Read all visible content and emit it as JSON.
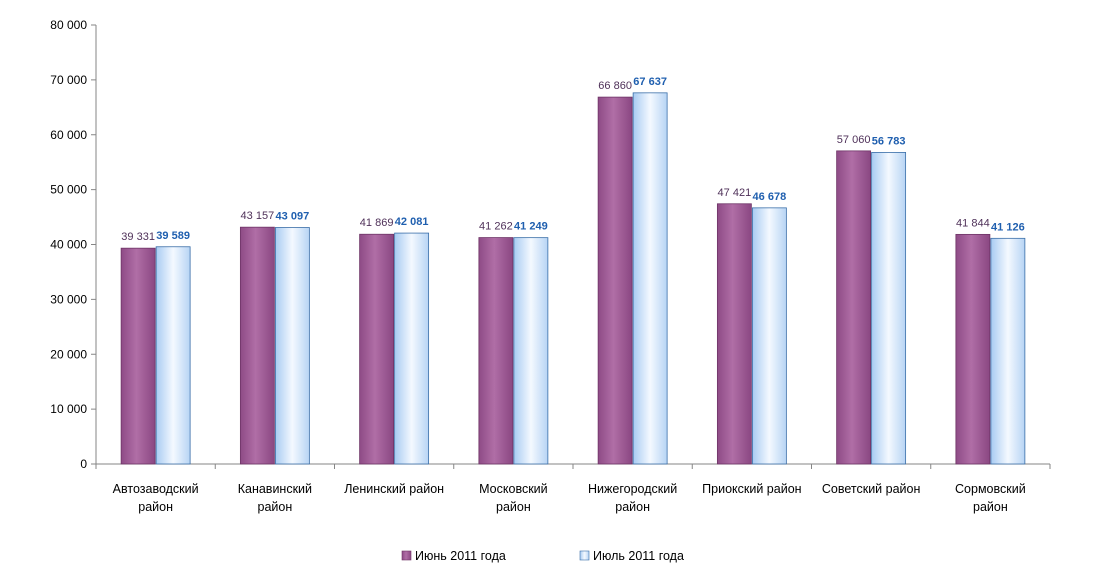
{
  "chart_data": {
    "type": "bar",
    "title": "",
    "xlabel": "",
    "ylabel": "",
    "ylim": [
      0,
      80000
    ],
    "yticks": [
      0,
      10000,
      20000,
      30000,
      40000,
      50000,
      60000,
      70000,
      80000
    ],
    "ytick_labels": [
      "0",
      "10 000",
      "20 000",
      "30 000",
      "40 000",
      "50 000",
      "60 000",
      "70 000",
      "80 000"
    ],
    "grid": false,
    "legend_position": "bottom",
    "categories": [
      [
        "Автозаводский",
        "район"
      ],
      [
        "Канавинский",
        "район"
      ],
      [
        "Ленинский район"
      ],
      [
        "Московский",
        "район"
      ],
      [
        "Нижегородский",
        "район"
      ],
      [
        "Приокский район"
      ],
      [
        "Советский район"
      ],
      [
        "Сормовский",
        "район"
      ]
    ],
    "series": [
      {
        "name": "Июнь 2011 года",
        "values": [
          39331,
          43157,
          41869,
          41262,
          66860,
          47421,
          57060,
          41844
        ],
        "labels": [
          "39 331",
          "43 157",
          "41 869",
          "41 262",
          "66 860",
          "47 421",
          "57 060",
          "41 844"
        ],
        "color": "#A8629E",
        "label_color": "#4F3159"
      },
      {
        "name": "Июль 2011 года",
        "values": [
          39589,
          43097,
          42081,
          41249,
          67637,
          46678,
          56783,
          41126
        ],
        "labels": [
          "39 589",
          "43 097",
          "42 081",
          "41 249",
          "67 637",
          "46 678",
          "56 783",
          "41 126"
        ],
        "color": "#D4E6FA",
        "label_color": "#1F5FAF"
      }
    ]
  }
}
